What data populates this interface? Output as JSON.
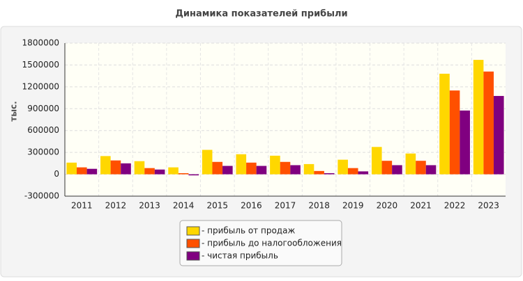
{
  "chart_data": {
    "type": "bar",
    "title": "Динамика показателей прибыли",
    "y_label": "тыс.",
    "categories": [
      "2011",
      "2012",
      "2013",
      "2014",
      "2015",
      "2016",
      "2017",
      "2018",
      "2019",
      "2020",
      "2021",
      "2022",
      "2023"
    ],
    "series": [
      {
        "name": "- прибыль от продаж",
        "color": "#ffd700",
        "values": [
          160000,
          250000,
          180000,
          95000,
          335000,
          275000,
          255000,
          140000,
          200000,
          375000,
          285000,
          1380000,
          1570000
        ]
      },
      {
        "name": "- прибыль до налогообложения",
        "color": "#ff5000",
        "values": [
          95000,
          190000,
          85000,
          15000,
          170000,
          160000,
          170000,
          45000,
          85000,
          185000,
          185000,
          1150000,
          1410000
        ]
      },
      {
        "name": "- чистая прибыль",
        "color": "#800080",
        "values": [
          75000,
          150000,
          65000,
          -15000,
          115000,
          115000,
          125000,
          15000,
          40000,
          125000,
          125000,
          875000,
          1075000
        ]
      }
    ],
    "ylim": [
      -300000,
      1800000
    ],
    "yticks": [
      -300000,
      0,
      300000,
      600000,
      900000,
      1200000,
      1500000,
      1800000
    ],
    "grid": true
  }
}
